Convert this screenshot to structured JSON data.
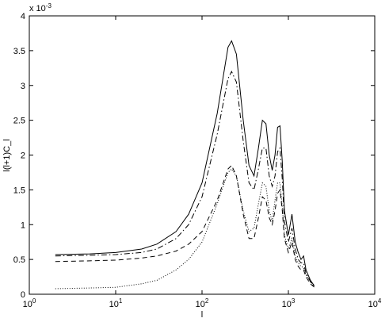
{
  "chart_data": {
    "type": "line",
    "xlabel": "l",
    "ylabel": "l(l+1)C_l",
    "y_multiplier": {
      "label": "x 10",
      "sup": "-3"
    },
    "xscale": "log",
    "xlim": [
      1,
      10000
    ],
    "xticks": [
      {
        "value": 1,
        "label": "10",
        "sup": "0"
      },
      {
        "value": 10,
        "label": "10",
        "sup": "1"
      },
      {
        "value": 100,
        "label": "10",
        "sup": "2"
      },
      {
        "value": 1000,
        "label": "10",
        "sup": "3"
      },
      {
        "value": 10000,
        "label": "10",
        "sup": "4"
      }
    ],
    "ylim": [
      0,
      4
    ],
    "yticks": [
      0,
      0.5,
      1,
      1.5,
      2,
      2.5,
      3,
      3.5,
      4
    ],
    "x": [
      2,
      5,
      10,
      20,
      30,
      50,
      70,
      100,
      150,
      200,
      220,
      250,
      300,
      350,
      400,
      450,
      500,
      550,
      600,
      650,
      700,
      750,
      800,
      850,
      900,
      1000,
      1100,
      1200,
      1300,
      1400,
      1500,
      1600,
      1800,
      2000
    ],
    "series": [
      {
        "color": "#000000",
        "dash": "solid",
        "values": [
          0.57,
          0.58,
          0.6,
          0.65,
          0.72,
          0.9,
          1.15,
          1.6,
          2.6,
          3.55,
          3.64,
          3.45,
          2.5,
          1.85,
          1.7,
          2.1,
          2.5,
          2.45,
          2.0,
          1.78,
          2.0,
          2.4,
          2.42,
          1.9,
          1.2,
          0.85,
          1.15,
          0.75,
          0.6,
          0.5,
          0.55,
          0.35,
          0.2,
          0.12
        ]
      },
      {
        "color": "#000000",
        "dash": "dashdot",
        "values": [
          0.55,
          0.56,
          0.57,
          0.6,
          0.65,
          0.8,
          1.0,
          1.4,
          2.3,
          3.1,
          3.2,
          3.05,
          2.2,
          1.6,
          1.5,
          1.8,
          2.1,
          2.1,
          1.7,
          1.55,
          1.7,
          2.05,
          2.1,
          1.65,
          1.05,
          0.75,
          0.95,
          0.65,
          0.5,
          0.45,
          0.45,
          0.3,
          0.18,
          0.1
        ]
      },
      {
        "color": "#000000",
        "dash": "dashed",
        "values": [
          0.47,
          0.48,
          0.49,
          0.52,
          0.55,
          0.62,
          0.72,
          0.9,
          1.35,
          1.8,
          1.85,
          1.7,
          1.15,
          0.8,
          0.8,
          1.1,
          1.4,
          1.35,
          1.1,
          1.0,
          1.2,
          1.45,
          1.5,
          1.2,
          0.8,
          0.6,
          0.75,
          0.5,
          0.4,
          0.35,
          0.35,
          0.25,
          0.15,
          0.1
        ]
      },
      {
        "color": "#000000",
        "dash": "dotted",
        "values": [
          0.08,
          0.09,
          0.1,
          0.15,
          0.2,
          0.35,
          0.5,
          0.75,
          1.3,
          1.75,
          1.8,
          1.7,
          1.2,
          0.9,
          0.95,
          1.3,
          1.6,
          1.55,
          1.2,
          1.05,
          1.35,
          1.6,
          1.6,
          1.25,
          0.85,
          0.65,
          0.8,
          0.55,
          0.45,
          0.4,
          0.38,
          0.28,
          0.18,
          0.12
        ]
      }
    ]
  }
}
